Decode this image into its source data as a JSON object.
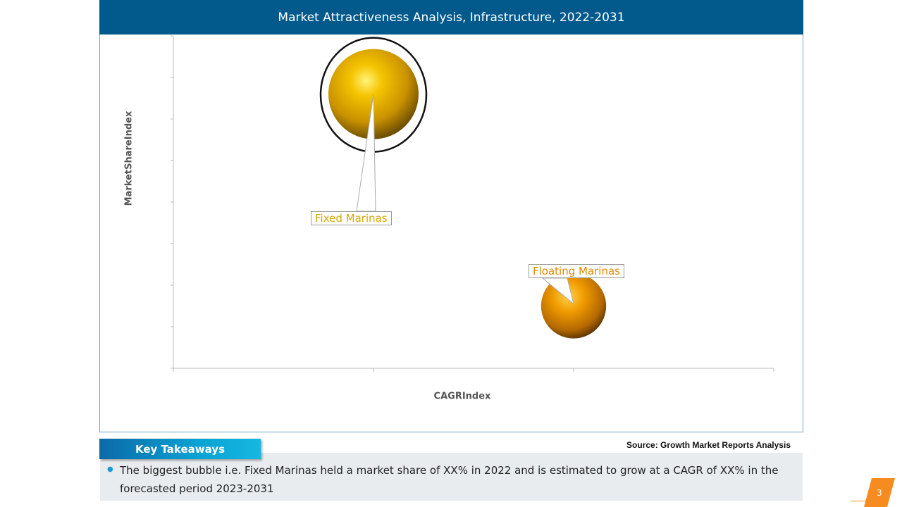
{
  "title": "Market Attractiveness Analysis, Infrastructure, 2022-2031",
  "chart_data": {
    "type": "bubble",
    "xlabel": "CAGRIndex",
    "ylabel": "MarketShareIndex",
    "xlim": [
      0,
      3
    ],
    "ylim": [
      0,
      8
    ],
    "series": [
      {
        "name": "Fixed Marinas",
        "x": 1.0,
        "y": 6.6,
        "size": 1.0,
        "color": "#d4a800",
        "highlighted": true
      },
      {
        "name": "Floating Marinas",
        "x": 2.0,
        "y": 1.5,
        "size": 0.52,
        "color": "#e08a00",
        "highlighted": false
      }
    ]
  },
  "source": "Source: Growth Market Reports Analysis",
  "key_takeaways": {
    "heading": "Key Takeaways",
    "items": [
      "The biggest bubble i.e. Fixed Marinas held a market share of XX% in 2022 and is estimated to grow at a CAGR of XX% in the forecasted period 2023-2031"
    ]
  },
  "page_number": "3",
  "colors": {
    "title_bar": "#025a8c",
    "accent_orange": "#f68b1f",
    "takeaway_blue": "#0aa1d3"
  }
}
